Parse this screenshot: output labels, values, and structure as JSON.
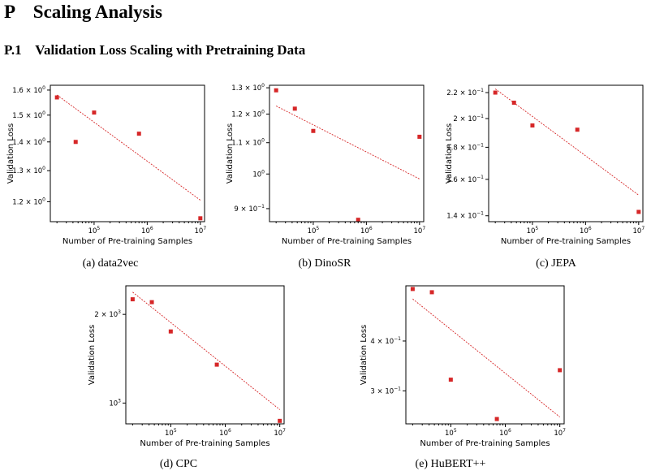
{
  "section": {
    "number": "P",
    "title": "Scaling Analysis"
  },
  "subsection": {
    "number": "P.1",
    "title": "Validation Loss Scaling with Pretraining Data"
  },
  "chart_data": [
    {
      "id": "a",
      "type": "scatter",
      "caption": "(a) data2vec",
      "xlabel": "Number of Pre-training Samples",
      "ylabel": "Validation Loss",
      "xscale": "log",
      "yscale": "log",
      "xlim": [
        15000,
        12000000
      ],
      "ylim": [
        1.14,
        1.62
      ],
      "x": [
        20000,
        45000,
        100000,
        700000,
        10000000
      ],
      "y": [
        1.57,
        1.4,
        1.51,
        1.43,
        1.15
      ],
      "fit": {
        "x": [
          20000,
          10000000
        ],
        "y": [
          1.58,
          1.205
        ]
      },
      "xticks": [
        {
          "v": 100000,
          "base": "10",
          "exp": "5"
        },
        {
          "v": 1000000,
          "base": "10",
          "exp": "6"
        },
        {
          "v": 10000000,
          "base": "10",
          "exp": "7"
        }
      ],
      "yticks": [
        {
          "v": 1.6,
          "base": "1.6 × 10",
          "exp": "0"
        },
        {
          "v": 1.5,
          "base": "1.5 × 10",
          "exp": "0"
        },
        {
          "v": 1.4,
          "base": "1.4 × 10",
          "exp": "0"
        },
        {
          "v": 1.3,
          "base": "1.3 × 10",
          "exp": "0"
        },
        {
          "v": 1.2,
          "base": "1.2 × 10",
          "exp": "0"
        }
      ],
      "color": "#d62728"
    },
    {
      "id": "b",
      "type": "scatter",
      "caption": "(b) DinoSR",
      "xlabel": "Number of Pre-training Samples",
      "ylabel": "Validation Loss",
      "xscale": "log",
      "yscale": "log",
      "xlim": [
        15000,
        12000000
      ],
      "ylim": [
        0.865,
        1.31
      ],
      "x": [
        20000,
        45000,
        100000,
        700000,
        10000000
      ],
      "y": [
        1.29,
        1.22,
        1.14,
        0.87,
        1.12
      ],
      "fit": {
        "x": [
          20000,
          10000000
        ],
        "y": [
          1.23,
          0.985
        ]
      },
      "xticks": [
        {
          "v": 100000,
          "base": "10",
          "exp": "5"
        },
        {
          "v": 1000000,
          "base": "10",
          "exp": "6"
        },
        {
          "v": 10000000,
          "base": "10",
          "exp": "7"
        }
      ],
      "yticks": [
        {
          "v": 1.3,
          "base": "1.3 × 10",
          "exp": "0"
        },
        {
          "v": 1.2,
          "base": "1.2 × 10",
          "exp": "0"
        },
        {
          "v": 1.1,
          "base": "1.1 × 10",
          "exp": "0"
        },
        {
          "v": 1.0,
          "base": "10",
          "exp": "0"
        },
        {
          "v": 0.9,
          "base": "9 × 10",
          "exp": "−1"
        }
      ],
      "color": "#d62728"
    },
    {
      "id": "c",
      "type": "scatter",
      "caption": "(c) JEPA",
      "xlabel": "Number of Pre-training Samples",
      "ylabel": "Validation Loss",
      "xscale": "log",
      "yscale": "log",
      "xlim": [
        15000,
        12000000
      ],
      "ylim": [
        0.137,
        0.226
      ],
      "x": [
        20000,
        45000,
        100000,
        700000,
        10000000
      ],
      "y": [
        0.22,
        0.212,
        0.195,
        0.192,
        0.142
      ],
      "fit": {
        "x": [
          20000,
          10000000
        ],
        "y": [
          0.223,
          0.151
        ]
      },
      "xticks": [
        {
          "v": 100000,
          "base": "10",
          "exp": "5"
        },
        {
          "v": 1000000,
          "base": "10",
          "exp": "6"
        },
        {
          "v": 10000000,
          "base": "10",
          "exp": "7"
        }
      ],
      "yticks": [
        {
          "v": 0.22,
          "base": "2.2 × 10",
          "exp": "−1"
        },
        {
          "v": 0.2,
          "base": "2 × 10",
          "exp": "−1"
        },
        {
          "v": 0.18,
          "base": "1.8 × 10",
          "exp": "−1"
        },
        {
          "v": 0.16,
          "base": "1.6 × 10",
          "exp": "−1"
        },
        {
          "v": 0.14,
          "base": "1.4 × 10",
          "exp": "−1"
        }
      ],
      "color": "#d62728"
    },
    {
      "id": "d",
      "type": "scatter",
      "caption": "(d) CPC",
      "xlabel": "Number of Pre-training Samples",
      "ylabel": "Validation Loss",
      "xscale": "log",
      "yscale": "log",
      "xlim": [
        15000,
        12000000
      ],
      "ylim": [
        850,
        2500
      ],
      "x": [
        20000,
        45000,
        100000,
        700000,
        10000000
      ],
      "y": [
        2250,
        2200,
        1750,
        1350,
        870
      ],
      "fit": {
        "x": [
          20000,
          10000000
        ],
        "y": [
          2380,
          950
        ]
      },
      "xticks": [
        {
          "v": 100000,
          "base": "10",
          "exp": "5"
        },
        {
          "v": 1000000,
          "base": "10",
          "exp": "6"
        },
        {
          "v": 10000000,
          "base": "10",
          "exp": "7"
        }
      ],
      "yticks": [
        {
          "v": 2000,
          "base": "2 × 10",
          "exp": "3"
        },
        {
          "v": 1000,
          "base": "10",
          "exp": "3"
        }
      ],
      "color": "#d62728"
    },
    {
      "id": "e",
      "type": "scatter",
      "caption": "(e) HuBERT++",
      "xlabel": "Number of Pre-training Samples",
      "ylabel": "Validation Loss",
      "xscale": "log",
      "yscale": "log",
      "xlim": [
        15000,
        12000000
      ],
      "ylim": [
        0.248,
        0.55
      ],
      "x": [
        20000,
        45000,
        100000,
        700000,
        10000000
      ],
      "y": [
        0.54,
        0.53,
        0.32,
        0.255,
        0.338
      ],
      "fit": {
        "x": [
          20000,
          10000000
        ],
        "y": [
          0.51,
          0.258
        ]
      },
      "xticks": [
        {
          "v": 100000,
          "base": "10",
          "exp": "5"
        },
        {
          "v": 1000000,
          "base": "10",
          "exp": "6"
        },
        {
          "v": 10000000,
          "base": "10",
          "exp": "7"
        }
      ],
      "yticks": [
        {
          "v": 0.4,
          "base": "4 × 10",
          "exp": "−1"
        },
        {
          "v": 0.3,
          "base": "3 × 10",
          "exp": "−1"
        }
      ],
      "color": "#d62728"
    }
  ]
}
